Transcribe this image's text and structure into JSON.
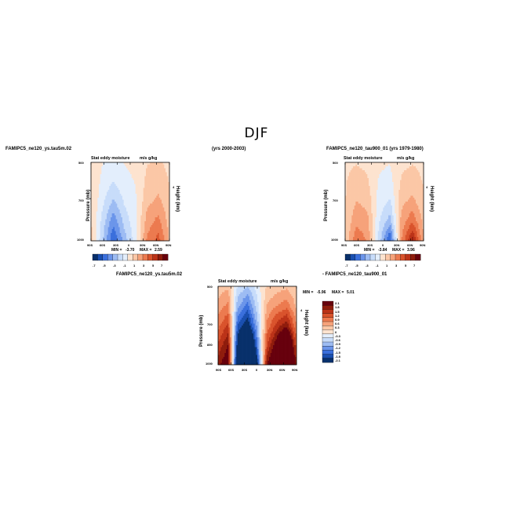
{
  "figure_title": "DJF",
  "panels": {
    "p1": {
      "case_label": "FAMIPC5_ne120_ys.tau5m.02",
      "years_label": "(yrs 2000-2003)",
      "left_subtitle": "Stat eddy moisture",
      "right_subtitle": "m/s g/kg",
      "ylabel": "Pressure (mb)",
      "y2label": "Height (km)",
      "y2tick": "4",
      "yticks": [
        "500",
        "700",
        "1000"
      ],
      "xticks": [
        "90S",
        "60S",
        "30S",
        "0",
        "30N",
        "60N",
        "90N"
      ],
      "min_label": "MIN =",
      "min_value": "-3.70",
      "max_label": "MAX =",
      "max_value": "2.59",
      "colorbar_labels": [
        "-7",
        "-5",
        "-3",
        "-1",
        "1",
        "3",
        "5",
        "7"
      ]
    },
    "p2": {
      "case_label": "FAMIPC5_ne120_tau900_01 (yrs 1979-1980)",
      "left_subtitle": "Stat eddy moisture",
      "right_subtitle": "m/s g/kg",
      "ylabel": "Pressure (mb)",
      "y2label": "Height (km)",
      "y2tick": "4",
      "yticks": [
        "500",
        "700",
        "1000"
      ],
      "xticks": [
        "90S",
        "60S",
        "30S",
        "0",
        "30N",
        "60N",
        "90N"
      ],
      "min_label": "MIN =",
      "min_value": "-3.84",
      "max_label": "MAX =",
      "max_value": "3.96",
      "colorbar_labels": [
        "-7",
        "-5",
        "-3",
        "-1",
        "1",
        "3",
        "5",
        "7"
      ]
    },
    "p3": {
      "case_label": "FAMIPC5_ne120_ys.tau5m.02",
      "diff_label": "- FAMIPC5_ne120_tau900_01",
      "left_subtitle": "Stat eddy moisture",
      "right_subtitle": "m/s g/kg",
      "ylabel": "Pressure (mb)",
      "y2label": "Height (km)",
      "y2tick": "4",
      "yticks": [
        "500",
        "700",
        "850",
        "1000"
      ],
      "xticks": [
        "90S",
        "60S",
        "30S",
        "0",
        "30N",
        "60N",
        "90N"
      ],
      "min_label": "MIN =",
      "min_value": "-5.96",
      "max_label": "MAX =",
      "max_value": "5.01",
      "colorbar_labels": [
        "2.1",
        "1.8",
        "1.5",
        "1.2",
        "0.9",
        "0.6",
        "0.3",
        "0",
        "-0.3",
        "-0.6",
        "-0.9",
        "-1.2",
        "-1.5",
        "-1.8",
        "-2.1"
      ]
    }
  },
  "chart_data": [
    {
      "type": "heatmap",
      "title": "Stat eddy moisture",
      "units": "m/s g/kg",
      "xlabel": "",
      "ylabel": "Pressure (mb)",
      "y2label": "Height (km)",
      "x_categories": [
        "90S",
        "60S",
        "30S",
        "0",
        "30N",
        "60N",
        "90N"
      ],
      "y_range": [
        1000,
        500
      ],
      "y_ticks": [
        500,
        700,
        1000
      ],
      "min": -3.7,
      "max": 2.59,
      "contour_levels": [
        -7,
        -5,
        -3,
        -1,
        1,
        3,
        5,
        7
      ],
      "colors": [
        "#08306b",
        "#1a4fb0",
        "#3a6fdc",
        "#6b95ea",
        "#9dbcf3",
        "#c7dcfa",
        "#e3eefc",
        "#fde3cf",
        "#fbc7a6",
        "#f6a27a",
        "#ec7a4f",
        "#d9532c",
        "#bb3318",
        "#8f1c0c",
        "#67000d"
      ],
      "columns": [
        {
          "lat": "90S",
          "values": [
            0.3,
            0.3,
            0.4,
            0.4,
            0.5
          ]
        },
        {
          "lat": "60S",
          "values": [
            -0.3,
            -0.5,
            -0.8,
            -1.2,
            -1.5
          ]
        },
        {
          "lat": "45S",
          "values": [
            -0.6,
            -1.0,
            -1.8,
            -2.8,
            -3.7
          ]
        },
        {
          "lat": "30S",
          "values": [
            -0.3,
            -0.5,
            -0.9,
            -1.4,
            -2.0
          ]
        },
        {
          "lat": "0",
          "values": [
            -0.2,
            -0.3,
            -0.4,
            -0.5,
            -0.6
          ]
        },
        {
          "lat": "30N",
          "values": [
            0.3,
            0.5,
            0.8,
            1.3,
            1.8
          ]
        },
        {
          "lat": "60N",
          "values": [
            0.4,
            0.7,
            1.2,
            1.9,
            2.59
          ]
        },
        {
          "lat": "90N",
          "values": [
            0.2,
            0.3,
            0.5,
            0.7,
            0.9
          ]
        }
      ]
    },
    {
      "type": "heatmap",
      "title": "Stat eddy moisture",
      "units": "m/s g/kg",
      "xlabel": "",
      "ylabel": "Pressure (mb)",
      "y2label": "Height (km)",
      "x_categories": [
        "90S",
        "60S",
        "30S",
        "0",
        "30N",
        "60N",
        "90N"
      ],
      "y_range": [
        1000,
        500
      ],
      "y_ticks": [
        500,
        700,
        1000
      ],
      "min": -3.84,
      "max": 3.96,
      "contour_levels": [
        -7,
        -5,
        -3,
        -1,
        1,
        3,
        5,
        7
      ],
      "columns": [
        {
          "lat": "90S",
          "values": [
            0.2,
            0.3,
            0.3,
            0.4,
            0.4
          ]
        },
        {
          "lat": "60S",
          "values": [
            0.3,
            0.6,
            1.0,
            1.5,
            2.2
          ]
        },
        {
          "lat": "45S",
          "values": [
            0.2,
            0.4,
            0.8,
            1.2,
            1.6
          ]
        },
        {
          "lat": "30S",
          "values": [
            -0.2,
            -0.4,
            -0.6,
            -0.9,
            -1.2
          ]
        },
        {
          "lat": "0",
          "values": [
            -0.3,
            -0.6,
            -1.1,
            -2.0,
            -3.84
          ]
        },
        {
          "lat": "30N",
          "values": [
            0.2,
            0.4,
            0.8,
            1.2,
            1.6
          ]
        },
        {
          "lat": "60N",
          "values": [
            0.3,
            0.6,
            1.2,
            2.2,
            3.96
          ]
        },
        {
          "lat": "90N",
          "values": [
            0.2,
            0.3,
            0.5,
            0.8,
            1.0
          ]
        }
      ]
    },
    {
      "type": "heatmap",
      "title": "Stat eddy moisture",
      "units": "m/s g/kg",
      "xlabel": "",
      "ylabel": "Pressure (mb)",
      "y2label": "Height (km)",
      "x_categories": [
        "90S",
        "60S",
        "30S",
        "0",
        "30N",
        "60N",
        "90N"
      ],
      "y_range": [
        1000,
        500
      ],
      "y_ticks": [
        500,
        700,
        850,
        1000
      ],
      "min": -5.96,
      "max": 5.01,
      "contour_levels": [
        -2.1,
        -1.8,
        -1.5,
        -1.2,
        -0.9,
        -0.6,
        -0.3,
        0,
        0.3,
        0.6,
        0.9,
        1.2,
        1.5,
        1.8,
        2.1
      ],
      "columns": [
        {
          "lat": "90S",
          "values": [
            0.3,
            0.6,
            1.0,
            1.5,
            2.0
          ]
        },
        {
          "lat": "60S",
          "values": [
            0.4,
            0.9,
            1.5,
            2.1,
            2.4
          ]
        },
        {
          "lat": "45S",
          "values": [
            -0.5,
            -1.0,
            -1.8,
            -2.4,
            -3.0
          ]
        },
        {
          "lat": "30S",
          "values": [
            -0.8,
            -1.6,
            -2.4,
            -4.0,
            -5.96
          ]
        },
        {
          "lat": "15S",
          "values": [
            -0.3,
            -0.6,
            -1.0,
            -1.5,
            -2.2
          ]
        },
        {
          "lat": "0",
          "values": [
            0.2,
            0.5,
            0.9,
            1.4,
            2.1
          ]
        },
        {
          "lat": "30N",
          "values": [
            0.3,
            0.8,
            1.6,
            2.4,
            3.0
          ]
        },
        {
          "lat": "60N",
          "values": [
            0.4,
            1.0,
            2.0,
            3.5,
            5.01
          ]
        },
        {
          "lat": "90N",
          "values": [
            0.2,
            0.4,
            0.8,
            1.3,
            1.8
          ]
        }
      ]
    }
  ]
}
